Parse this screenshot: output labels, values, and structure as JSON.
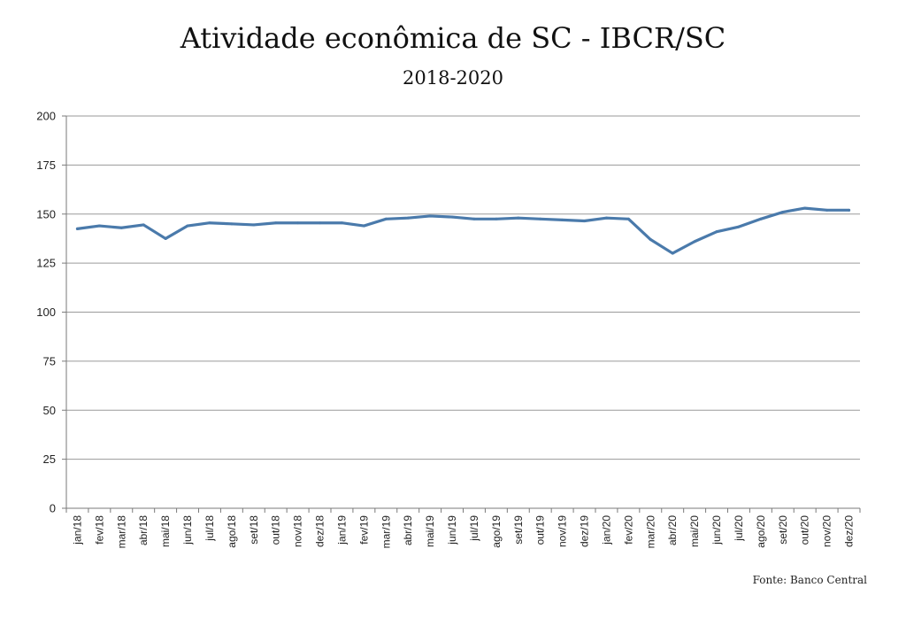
{
  "chart_data": {
    "type": "line",
    "title": "Atividade econômica de SC - IBCR/SC",
    "subtitle": "2018-2020",
    "source": "Fonte: Banco Central",
    "xlabel": "",
    "ylabel": "",
    "ylim": [
      0,
      200
    ],
    "yticks": [
      0,
      25,
      50,
      75,
      100,
      125,
      150,
      175,
      200
    ],
    "grid": true,
    "legend": "none",
    "line_color": "#4a7aab",
    "categories": [
      "jan/18",
      "fev/18",
      "mar/18",
      "abr/18",
      "mai/18",
      "jun/18",
      "jul/18",
      "ago/18",
      "set/18",
      "out/18",
      "nov/18",
      "dez/18",
      "jan/19",
      "fev/19",
      "mar/19",
      "abr/19",
      "mai/19",
      "jun/19",
      "jul/19",
      "ago/19",
      "set/19",
      "out/19",
      "nov/19",
      "dez/19",
      "jan/20",
      "fev/20",
      "mar/20",
      "abr/20",
      "mai/20",
      "jun/20",
      "jul/20",
      "ago/20",
      "set/20",
      "out/20",
      "nov/20",
      "dez/20"
    ],
    "series": [
      {
        "values": [
          142.5,
          144,
          143,
          144.5,
          137.5,
          144,
          145.5,
          145,
          144.5,
          145.5,
          145.5,
          145.5,
          145.5,
          144,
          147.5,
          148,
          149,
          148.5,
          147.5,
          147.5,
          148,
          147.5,
          147,
          146.5,
          148,
          147.5,
          137,
          130,
          136,
          141,
          143.5,
          147.5,
          151,
          153,
          152,
          152
        ]
      }
    ]
  }
}
